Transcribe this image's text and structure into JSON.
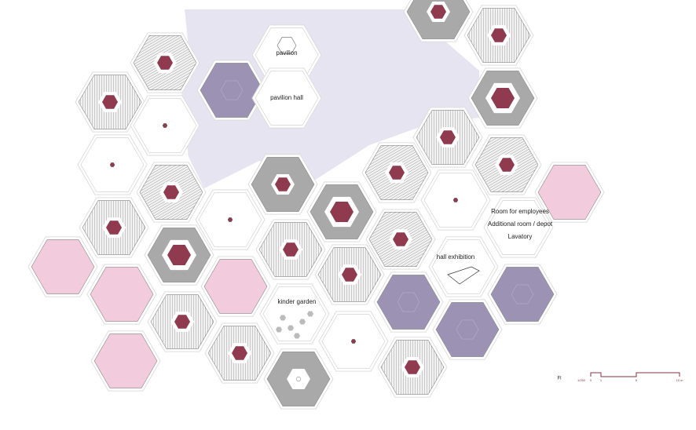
{
  "labels": {
    "pavilion": "pavilion",
    "pavilion_hall": "pavilion hall",
    "employees": [
      "Room for employees",
      "Additional room / depot",
      "Lavatory"
    ],
    "hall_exhibition": "hall exhibition",
    "kinder_garden": "kinder garden"
  },
  "legend": {
    "floor": "Fl",
    "scale": "1/250",
    "ticks": [
      "0",
      "1",
      "5",
      "10 m"
    ]
  }
}
